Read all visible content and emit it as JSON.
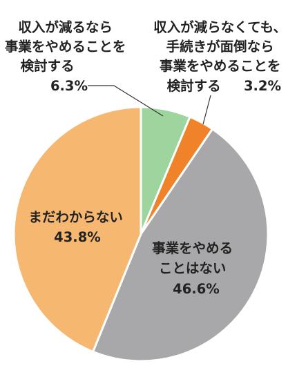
{
  "chart_data": {
    "type": "pie",
    "start_angle_deg": 0,
    "direction": "clockwise",
    "slices": [
      {
        "lines": [
          "収入が減るなら",
          "事業をやめることを",
          "検討する"
        ],
        "value_label": "6.3%",
        "value": 6.3,
        "color": "#9ed49e"
      },
      {
        "lines": [
          "収入が減らなくても、",
          "手続きが面倒なら",
          "事業をやめることを",
          "検討する"
        ],
        "value_label": "3.2%",
        "value": 3.2,
        "color": "#f0822a"
      },
      {
        "lines": [
          "事業をやめる",
          "ことはない"
        ],
        "value_label": "46.6%",
        "value": 46.6,
        "color": "#a8a8aa"
      },
      {
        "lines": [
          "まだわからない"
        ],
        "value_label": "43.8%",
        "value": 43.8,
        "color": "#f6b771"
      }
    ]
  }
}
